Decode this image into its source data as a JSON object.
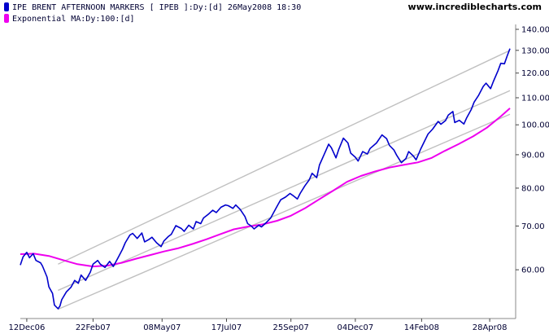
{
  "header": {
    "watermark": "www.incrediblecharts.com"
  },
  "colors": {
    "price": "#0000cc",
    "ema": "#ee00ee",
    "channel": "#c0c0c0",
    "axis": "#888888",
    "grid_tick": "#444444"
  },
  "chart_data": {
    "type": "line",
    "scale": "log",
    "ylim": [
      52,
      140
    ],
    "xlim": [
      "2006-12-05",
      "2008-05-20"
    ],
    "x_tick_labels": [
      {
        "date": "2006-12-12",
        "label": "12Dec06"
      },
      {
        "date": "2007-02-22",
        "label": "22Feb07"
      },
      {
        "date": "2007-05-08",
        "label": "08May07"
      },
      {
        "date": "2007-07-17",
        "label": "17Jul07"
      },
      {
        "date": "2007-09-25",
        "label": "25Sep07"
      },
      {
        "date": "2007-12-04",
        "label": "04Dec07"
      },
      {
        "date": "2008-02-14",
        "label": "14Feb08"
      },
      {
        "date": "2008-04-28",
        "label": "28Apr08"
      }
    ],
    "y_tick_labels": [
      {
        "value": 140,
        "label": "140.00"
      },
      {
        "value": 130,
        "label": "130.00"
      },
      {
        "value": 120,
        "label": "120.00"
      },
      {
        "value": 110,
        "label": "110.00"
      },
      {
        "value": 100,
        "label": "100.00"
      },
      {
        "value": 90,
        "label": "90.00"
      },
      {
        "value": 80,
        "label": "80.00"
      },
      {
        "value": 70,
        "label": "70.00"
      },
      {
        "value": 60,
        "label": "60.00"
      }
    ],
    "series": [
      {
        "name": "IPE BRENT AFTERNOON MARKERS [ IPEB ]:Dy:[d]  26May2008 18:30",
        "color": "#0000cc",
        "points": [
          [
            "2006-12-05",
            61.0
          ],
          [
            "2006-12-08",
            62.8
          ],
          [
            "2006-12-12",
            63.8
          ],
          [
            "2006-12-15",
            62.6
          ],
          [
            "2006-12-19",
            63.5
          ],
          [
            "2006-12-22",
            62.0
          ],
          [
            "2006-12-27",
            61.5
          ],
          [
            "2006-12-29",
            60.8
          ],
          [
            "2007-01-03",
            58.5
          ],
          [
            "2007-01-05",
            56.5
          ],
          [
            "2007-01-09",
            55.2
          ],
          [
            "2007-01-11",
            53.0
          ],
          [
            "2007-01-15",
            52.3
          ],
          [
            "2007-01-17",
            52.8
          ],
          [
            "2007-01-19",
            54.0
          ],
          [
            "2007-01-24",
            55.5
          ],
          [
            "2007-01-29",
            56.4
          ],
          [
            "2007-02-02",
            57.8
          ],
          [
            "2007-02-06",
            57.2
          ],
          [
            "2007-02-09",
            58.9
          ],
          [
            "2007-02-14",
            57.8
          ],
          [
            "2007-02-19",
            59.5
          ],
          [
            "2007-02-22",
            61.2
          ],
          [
            "2007-02-27",
            62.0
          ],
          [
            "2007-03-02",
            61.2
          ],
          [
            "2007-03-07",
            60.5
          ],
          [
            "2007-03-12",
            61.8
          ],
          [
            "2007-03-16",
            60.7
          ],
          [
            "2007-03-21",
            62.5
          ],
          [
            "2007-03-26",
            64.5
          ],
          [
            "2007-03-29",
            66.0
          ],
          [
            "2007-04-03",
            67.8
          ],
          [
            "2007-04-06",
            68.2
          ],
          [
            "2007-04-11",
            67.0
          ],
          [
            "2007-04-16",
            68.3
          ],
          [
            "2007-04-19",
            66.2
          ],
          [
            "2007-04-24",
            66.8
          ],
          [
            "2007-04-27",
            67.3
          ],
          [
            "2007-05-02",
            66.0
          ],
          [
            "2007-05-07",
            65.1
          ],
          [
            "2007-05-10",
            66.4
          ],
          [
            "2007-05-15",
            67.5
          ],
          [
            "2007-05-18",
            68.0
          ],
          [
            "2007-05-23",
            70.1
          ],
          [
            "2007-05-29",
            69.4
          ],
          [
            "2007-06-01",
            68.7
          ],
          [
            "2007-06-06",
            70.2
          ],
          [
            "2007-06-11",
            69.3
          ],
          [
            "2007-06-14",
            71.1
          ],
          [
            "2007-06-19",
            70.6
          ],
          [
            "2007-06-22",
            72.0
          ],
          [
            "2007-06-27",
            72.9
          ],
          [
            "2007-07-02",
            74.0
          ],
          [
            "2007-07-06",
            73.4
          ],
          [
            "2007-07-11",
            74.8
          ],
          [
            "2007-07-16",
            75.4
          ],
          [
            "2007-07-19",
            75.2
          ],
          [
            "2007-07-24",
            74.5
          ],
          [
            "2007-07-27",
            75.4
          ],
          [
            "2007-08-01",
            74.2
          ],
          [
            "2007-08-06",
            72.4
          ],
          [
            "2007-08-09",
            70.6
          ],
          [
            "2007-08-13",
            70.0
          ],
          [
            "2007-08-16",
            69.3
          ],
          [
            "2007-08-21",
            70.2
          ],
          [
            "2007-08-24",
            69.8
          ],
          [
            "2007-08-29",
            70.8
          ],
          [
            "2007-09-03",
            72.0
          ],
          [
            "2007-09-06",
            73.3
          ],
          [
            "2007-09-11",
            75.5
          ],
          [
            "2007-09-14",
            76.8
          ],
          [
            "2007-09-19",
            77.5
          ],
          [
            "2007-09-24",
            78.5
          ],
          [
            "2007-09-27",
            78.0
          ],
          [
            "2007-10-02",
            77.0
          ],
          [
            "2007-10-05",
            78.5
          ],
          [
            "2007-10-10",
            80.6
          ],
          [
            "2007-10-15",
            82.4
          ],
          [
            "2007-10-18",
            84.3
          ],
          [
            "2007-10-23",
            83.0
          ],
          [
            "2007-10-26",
            86.8
          ],
          [
            "2007-10-31",
            90.0
          ],
          [
            "2007-11-05",
            93.4
          ],
          [
            "2007-11-08",
            92.2
          ],
          [
            "2007-11-13",
            89.0
          ],
          [
            "2007-11-16",
            91.7
          ],
          [
            "2007-11-21",
            95.4
          ],
          [
            "2007-11-26",
            93.8
          ],
          [
            "2007-11-29",
            90.5
          ],
          [
            "2007-12-04",
            89.2
          ],
          [
            "2007-12-07",
            88.0
          ],
          [
            "2007-12-12",
            91.0
          ],
          [
            "2007-12-17",
            90.2
          ],
          [
            "2007-12-20",
            92.0
          ],
          [
            "2007-12-27",
            93.8
          ],
          [
            "2008-01-02",
            96.5
          ],
          [
            "2008-01-07",
            95.2
          ],
          [
            "2008-01-10",
            93.0
          ],
          [
            "2008-01-15",
            91.5
          ],
          [
            "2008-01-18",
            89.8
          ],
          [
            "2008-01-23",
            87.5
          ],
          [
            "2008-01-28",
            88.8
          ],
          [
            "2008-01-31",
            91.0
          ],
          [
            "2008-02-05",
            89.6
          ],
          [
            "2008-02-08",
            88.4
          ],
          [
            "2008-02-13",
            91.8
          ],
          [
            "2008-02-18",
            94.9
          ],
          [
            "2008-02-21",
            96.8
          ],
          [
            "2008-02-26",
            98.5
          ],
          [
            "2008-03-03",
            101.2
          ],
          [
            "2008-03-06",
            100.2
          ],
          [
            "2008-03-11",
            101.5
          ],
          [
            "2008-03-14",
            103.5
          ],
          [
            "2008-03-19",
            104.8
          ],
          [
            "2008-03-21",
            100.8
          ],
          [
            "2008-03-26",
            101.6
          ],
          [
            "2008-03-31",
            100.3
          ],
          [
            "2008-04-03",
            102.5
          ],
          [
            "2008-04-08",
            105.6
          ],
          [
            "2008-04-11",
            108.3
          ],
          [
            "2008-04-16",
            111.0
          ],
          [
            "2008-04-21",
            114.5
          ],
          [
            "2008-04-24",
            115.8
          ],
          [
            "2008-04-29",
            113.6
          ],
          [
            "2008-05-02",
            116.5
          ],
          [
            "2008-05-07",
            121.0
          ],
          [
            "2008-05-10",
            124.2
          ],
          [
            "2008-05-14",
            124.0
          ],
          [
            "2008-05-17",
            127.5
          ],
          [
            "2008-05-20",
            130.8
          ]
        ]
      },
      {
        "name": "Exponential MA:Dy:100:[d]",
        "color": "#ee00ee",
        "points": [
          [
            "2006-12-05",
            63.4
          ],
          [
            "2006-12-20",
            63.5
          ],
          [
            "2007-01-05",
            63.0
          ],
          [
            "2007-01-20",
            62.1
          ],
          [
            "2007-02-05",
            61.2
          ],
          [
            "2007-02-22",
            60.7
          ],
          [
            "2007-03-10",
            60.9
          ],
          [
            "2007-03-25",
            61.5
          ],
          [
            "2007-04-10",
            62.4
          ],
          [
            "2007-04-25",
            63.2
          ],
          [
            "2007-05-10",
            64.0
          ],
          [
            "2007-05-25",
            64.7
          ],
          [
            "2007-06-10",
            65.7
          ],
          [
            "2007-06-25",
            66.8
          ],
          [
            "2007-07-10",
            68.0
          ],
          [
            "2007-07-25",
            69.2
          ],
          [
            "2007-08-10",
            69.9
          ],
          [
            "2007-08-25",
            70.4
          ],
          [
            "2007-09-10",
            71.3
          ],
          [
            "2007-09-25",
            72.6
          ],
          [
            "2007-10-10",
            74.5
          ],
          [
            "2007-10-25",
            76.8
          ],
          [
            "2007-11-10",
            79.3
          ],
          [
            "2007-11-25",
            81.8
          ],
          [
            "2007-12-10",
            83.5
          ],
          [
            "2007-12-25",
            84.8
          ],
          [
            "2008-01-10",
            86.0
          ],
          [
            "2008-01-25",
            86.8
          ],
          [
            "2008-02-10",
            87.6
          ],
          [
            "2008-02-25",
            89.0
          ],
          [
            "2008-03-10",
            91.2
          ],
          [
            "2008-03-25",
            93.4
          ],
          [
            "2008-04-10",
            96.0
          ],
          [
            "2008-04-25",
            99.0
          ],
          [
            "2008-05-10",
            103.0
          ],
          [
            "2008-05-20",
            106.0
          ]
        ]
      }
    ],
    "channels": [
      {
        "name": "channel-upper",
        "start": [
          "2007-01-15",
          61.2
        ],
        "end": [
          "2008-05-20",
          130.0
        ]
      },
      {
        "name": "channel-middle",
        "start": [
          "2007-01-15",
          55.8
        ],
        "end": [
          "2008-05-20",
          112.8
        ]
      },
      {
        "name": "channel-lower",
        "start": [
          "2007-01-15",
          52.2
        ],
        "end": [
          "2008-05-20",
          103.8
        ]
      }
    ],
    "legend_position": "top-left",
    "grid": false
  }
}
